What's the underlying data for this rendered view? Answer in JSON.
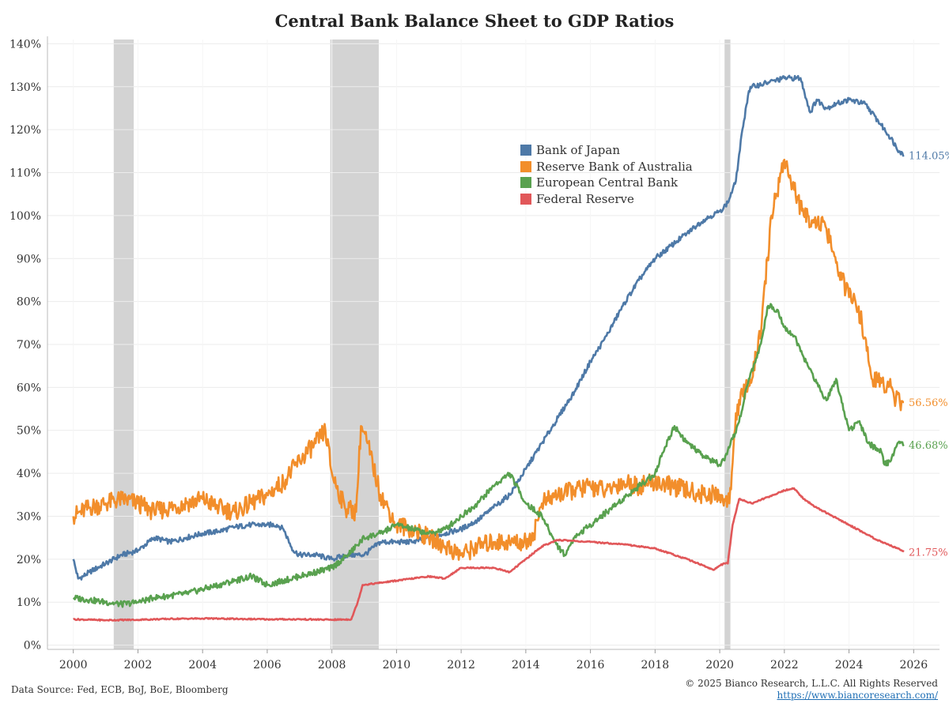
{
  "title": "Central Bank Balance Sheet to GDP Ratios",
  "footer": {
    "source": "Data Source: Fed, ECB, BoJ, BoE, Bloomberg",
    "copyright": "© 2025 Bianco Research, L.L.C. All Rights Reserved",
    "url": "https://www.biancoresearch.com/"
  },
  "chart_data": {
    "type": "line",
    "title": "Central Bank Balance Sheet to GDP Ratios",
    "xlabel": "",
    "ylabel": "",
    "xlim": [
      1999.2,
      2026.8
    ],
    "ylim": [
      -1,
      141
    ],
    "x_ticks": [
      2000,
      2002,
      2004,
      2006,
      2008,
      2010,
      2012,
      2014,
      2016,
      2018,
      2020,
      2022,
      2024,
      2026
    ],
    "x_tick_labels": [
      "2000",
      "2002",
      "2004",
      "2006",
      "2008",
      "2010",
      "2012",
      "2014",
      "2016",
      "2018",
      "2020",
      "2022",
      "2024",
      "2026"
    ],
    "y_ticks": [
      0,
      10,
      20,
      30,
      40,
      50,
      60,
      70,
      80,
      90,
      100,
      110,
      120,
      130,
      140
    ],
    "y_tick_labels": [
      "0%",
      "10%",
      "20%",
      "30%",
      "40%",
      "50%",
      "60%",
      "70%",
      "80%",
      "90%",
      "100%",
      "110%",
      "120%",
      "130%",
      "140%"
    ],
    "grid": "horizontal",
    "legend_position": "upper-center",
    "recessions": [
      [
        2001.25,
        2001.87
      ],
      [
        2007.95,
        2009.45
      ],
      [
        2020.15,
        2020.33
      ]
    ],
    "series": [
      {
        "name": "Bank of Japan",
        "color": "#4e79a7",
        "end_label": "114.05%",
        "x": [
          2000.0,
          2000.15,
          2000.3,
          2000.5,
          2001.0,
          2001.5,
          2002.0,
          2002.5,
          2003.0,
          2003.5,
          2004.0,
          2004.5,
          2005.0,
          2005.5,
          2006.0,
          2006.3,
          2006.5,
          2006.8,
          2007.0,
          2007.5,
          2008.0,
          2008.5,
          2009.0,
          2009.5,
          2010.0,
          2010.5,
          2011.0,
          2011.5,
          2012.0,
          2012.5,
          2013.0,
          2013.5,
          2014.0,
          2014.5,
          2015.0,
          2015.5,
          2016.0,
          2016.5,
          2017.0,
          2017.5,
          2018.0,
          2018.5,
          2019.0,
          2019.5,
          2020.0,
          2020.25,
          2020.5,
          2020.7,
          2020.9,
          2021.0,
          2021.5,
          2022.0,
          2022.5,
          2022.8,
          2023.0,
          2023.3,
          2023.6,
          2024.0,
          2024.5,
          2025.0,
          2025.3,
          2025.55,
          2025.7
        ],
        "values": [
          20,
          15.5,
          16,
          17,
          19,
          21,
          22,
          25,
          24,
          25,
          26,
          26.5,
          27.5,
          28,
          28,
          28,
          27,
          22,
          21,
          21,
          20,
          21,
          21,
          24,
          24,
          24,
          25,
          26,
          27,
          29,
          32,
          35,
          41,
          47,
          53,
          59,
          66,
          72,
          79,
          85,
          90,
          93,
          96,
          99,
          101,
          103,
          108,
          120,
          129,
          130,
          131,
          132,
          132,
          124,
          127,
          125,
          126,
          127,
          126,
          121,
          118,
          115,
          114.05
        ]
      },
      {
        "name": "Reserve Bank of Australia",
        "color": "#f28e2b",
        "end_label": "56.56%",
        "x": [
          2000.0,
          2000.5,
          2001.0,
          2001.5,
          2002.0,
          2002.5,
          2003.0,
          2003.5,
          2004.0,
          2004.5,
          2005.0,
          2005.5,
          2006.0,
          2006.5,
          2007.0,
          2007.5,
          2007.8,
          2008.0,
          2008.4,
          2008.75,
          2008.9,
          2009.1,
          2009.5,
          2010.0,
          2010.5,
          2011.0,
          2011.5,
          2012.0,
          2012.5,
          2013.0,
          2013.5,
          2014.0,
          2014.25,
          2014.5,
          2015.0,
          2015.5,
          2016.0,
          2016.5,
          2017.0,
          2017.5,
          2018.0,
          2018.5,
          2019.0,
          2019.5,
          2020.0,
          2020.15,
          2020.3,
          2020.5,
          2020.8,
          2021.0,
          2021.3,
          2021.6,
          2021.9,
          2022.0,
          2022.3,
          2022.6,
          2022.9,
          2023.3,
          2023.6,
          2024.0,
          2024.2,
          2024.4,
          2024.7,
          2025.0,
          2025.3,
          2025.45,
          2025.7
        ],
        "values": [
          30,
          32,
          33,
          34,
          33,
          31,
          32,
          33,
          34,
          32,
          31,
          33,
          35,
          38,
          43,
          47,
          50,
          40,
          32,
          31,
          51,
          47,
          35,
          28,
          27,
          25,
          23,
          21,
          23,
          24,
          24,
          24,
          26,
          33,
          35,
          36,
          37,
          36,
          38,
          37,
          38,
          37,
          36,
          35,
          35,
          34,
          33,
          54,
          60,
          62,
          75,
          100,
          110,
          113,
          106,
          100,
          99,
          97,
          89,
          81,
          80,
          75,
          62,
          61,
          60,
          57,
          56.56
        ]
      },
      {
        "name": "European Central Bank",
        "color": "#59a14f",
        "end_label": "46.68%",
        "x": [
          2000.0,
          2000.5,
          2001.0,
          2001.5,
          2002.0,
          2002.5,
          2003.0,
          2003.5,
          2004.0,
          2004.5,
          2005.0,
          2005.5,
          2006.0,
          2006.5,
          2007.0,
          2007.5,
          2008.0,
          2008.5,
          2009.0,
          2009.5,
          2010.0,
          2010.5,
          2011.0,
          2011.5,
          2012.0,
          2012.5,
          2013.0,
          2013.5,
          2014.0,
          2014.5,
          2014.9,
          2015.2,
          2015.5,
          2016.0,
          2016.5,
          2017.0,
          2017.5,
          2018.0,
          2018.3,
          2018.6,
          2019.0,
          2019.5,
          2020.0,
          2020.15,
          2020.3,
          2020.6,
          2020.9,
          2021.2,
          2021.5,
          2021.8,
          2022.0,
          2022.3,
          2022.6,
          2023.0,
          2023.3,
          2023.6,
          2024.0,
          2024.3,
          2024.6,
          2025.0,
          2025.1,
          2025.3,
          2025.5,
          2025.7
        ],
        "values": [
          11,
          10.5,
          10,
          9.5,
          10,
          11,
          11.5,
          12,
          13,
          14,
          15,
          16,
          14,
          15,
          16,
          17,
          18,
          21,
          25,
          26,
          28,
          27,
          26,
          27,
          30,
          33,
          37,
          40,
          33,
          30,
          24,
          21,
          25,
          28,
          31,
          34,
          37,
          40,
          46,
          51,
          47,
          44,
          42,
          43,
          46,
          52,
          62,
          68,
          79,
          78,
          74,
          72,
          67,
          61,
          57,
          62,
          50,
          52,
          47,
          45,
          42,
          43,
          47,
          46.68
        ]
      },
      {
        "name": "Federal Reserve",
        "color": "#e15759",
        "end_label": "21.75%",
        "x": [
          2000.0,
          2001.0,
          2002.0,
          2003.0,
          2004.0,
          2005.0,
          2006.0,
          2007.0,
          2008.0,
          2008.6,
          2008.8,
          2008.95,
          2009.5,
          2010.0,
          2011.0,
          2011.5,
          2012.0,
          2013.0,
          2013.5,
          2014.0,
          2014.5,
          2015.0,
          2016.0,
          2017.0,
          2018.0,
          2019.0,
          2019.5,
          2019.8,
          2020.0,
          2020.15,
          2020.25,
          2020.4,
          2020.6,
          2021.0,
          2021.5,
          2022.0,
          2022.3,
          2022.6,
          2023.0,
          2023.5,
          2024.0,
          2024.5,
          2025.0,
          2025.5,
          2025.7
        ],
        "values": [
          6,
          5.8,
          5.9,
          6.1,
          6.2,
          6.1,
          6.0,
          6.0,
          5.9,
          6,
          10,
          14,
          14.5,
          15,
          16,
          15.5,
          18,
          18,
          17,
          20,
          23,
          24.5,
          24,
          23.5,
          22.5,
          20,
          18.5,
          17.5,
          18.5,
          19,
          19,
          28,
          34,
          33,
          34.5,
          36,
          36.5,
          34,
          32,
          30,
          28,
          26,
          24,
          22.5,
          21.75
        ]
      }
    ]
  }
}
